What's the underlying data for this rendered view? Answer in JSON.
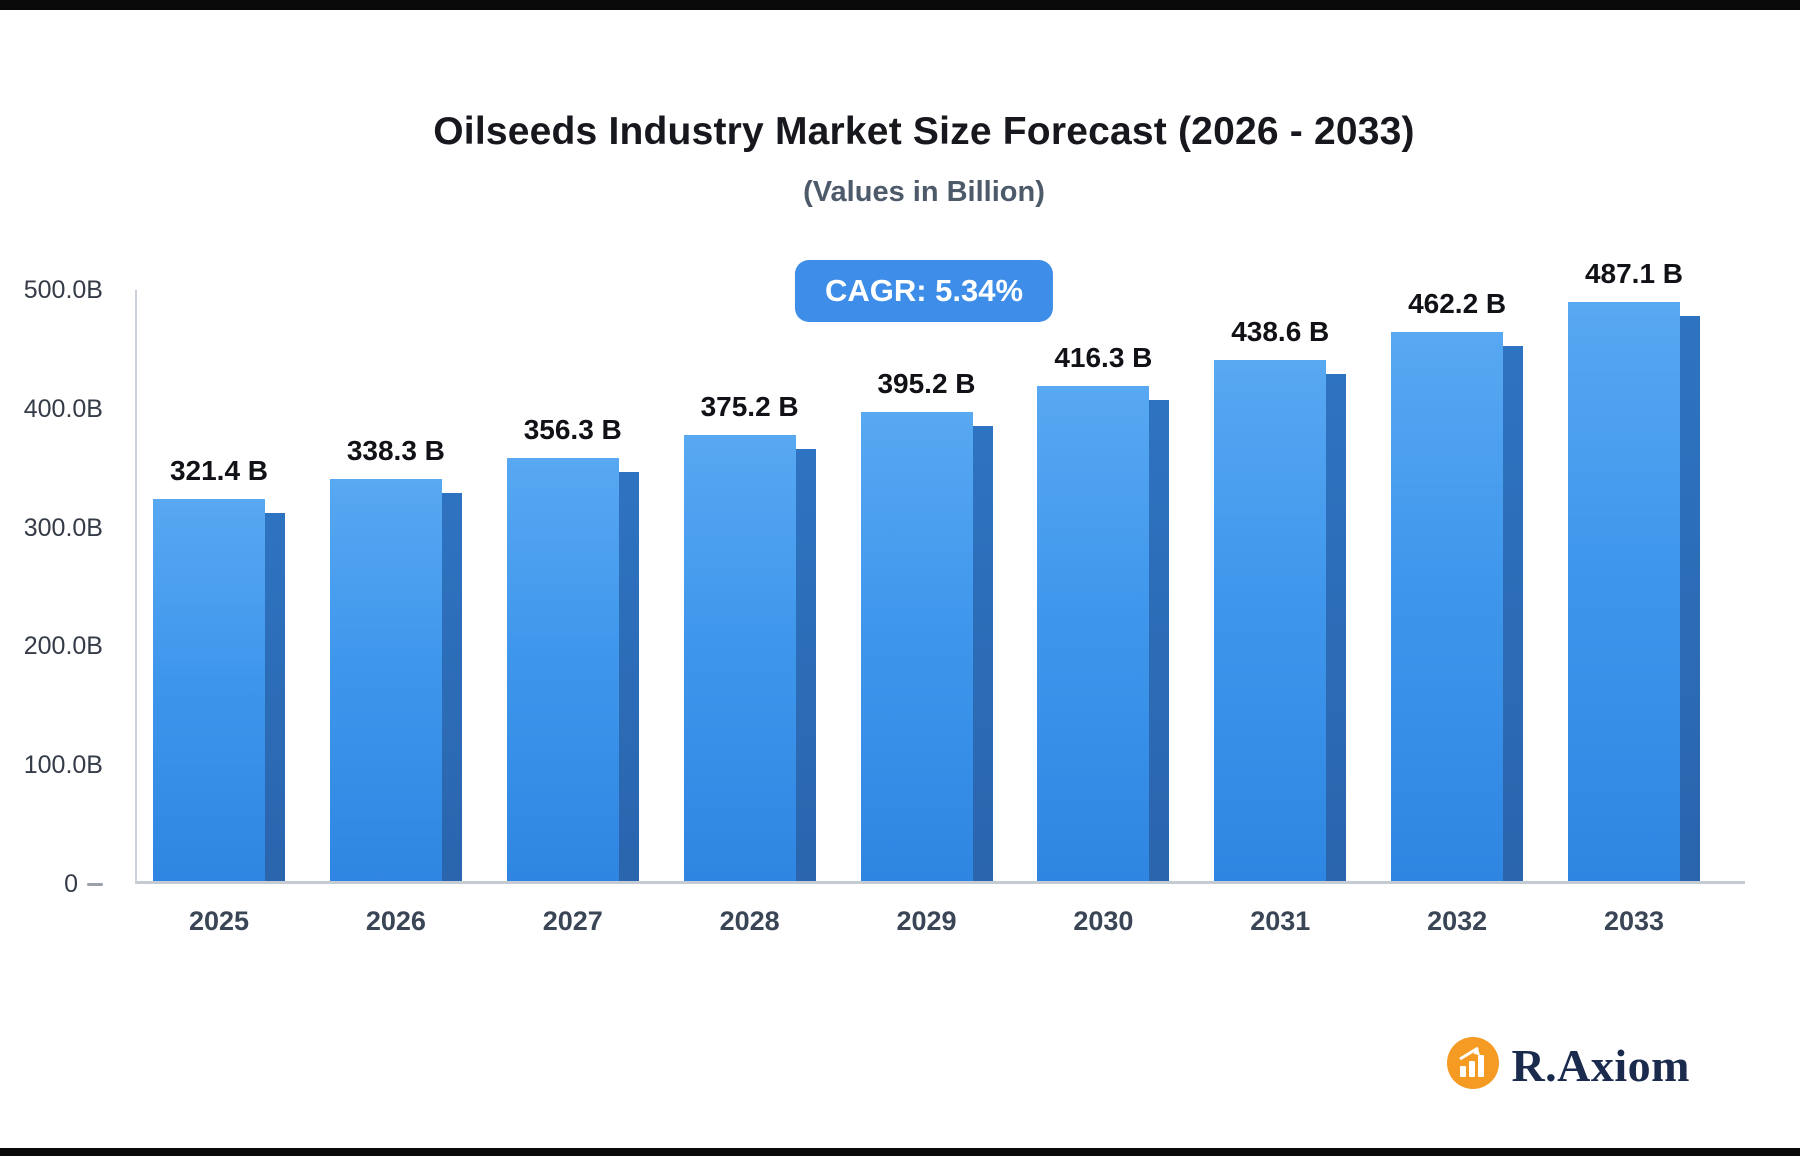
{
  "page": {
    "title": "Oilseeds Industry Market Size Forecast (2026 - 2033)",
    "subtitle": "(Values in Billion)",
    "cagr_badge": "CAGR: 5.34%"
  },
  "chart_data": {
    "type": "bar",
    "title": "Oilseeds Industry Market Size Forecast (2026 - 2033)",
    "subtitle": "(Values in Billion)",
    "cagr": "5.34%",
    "categories": [
      "2025",
      "2026",
      "2027",
      "2028",
      "2029",
      "2030",
      "2031",
      "2032",
      "2033"
    ],
    "values": [
      321.4,
      338.3,
      356.3,
      375.2,
      395.2,
      416.3,
      438.6,
      462.2,
      487.1
    ],
    "value_labels": [
      "321.4 B",
      "338.3 B",
      "356.3 B",
      "375.2 B",
      "395.2 B",
      "416.3 B",
      "438.6 B",
      "462.2 B",
      "487.1 B"
    ],
    "unit": "Billion",
    "xlabel": "",
    "ylabel": "",
    "ylim": [
      0,
      500
    ],
    "grid": false,
    "legend": false,
    "y_ticks": [
      {
        "value": 0,
        "label": "0",
        "dash": true
      },
      {
        "value": 100,
        "label": "100.0B",
        "dash": false
      },
      {
        "value": 200,
        "label": "200.0B",
        "dash": false
      },
      {
        "value": 300,
        "label": "300.0B",
        "dash": false
      },
      {
        "value": 400,
        "label": "400.0B",
        "dash": false
      },
      {
        "value": 500,
        "label": "500.0B",
        "dash": false
      }
    ],
    "bar_color": "#3f97ec",
    "bar_side_color": "#2c6cb8"
  },
  "branding": {
    "logo_text": "R.Axiom",
    "logo_icon": "bar-chart-icon",
    "logo_icon_color": "#f59b23",
    "logo_text_color": "#1a2b4d"
  },
  "colors": {
    "accent_blue": "#3e8ee9",
    "title": "#17181d",
    "subtitle": "#4d5a6a",
    "axis_line": "#c5cbd3"
  }
}
